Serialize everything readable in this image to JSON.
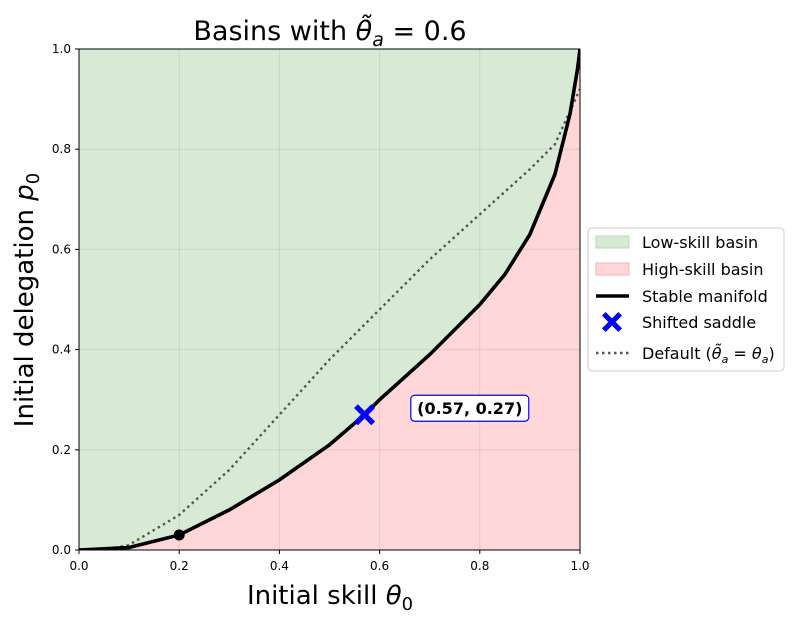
{
  "chart_data": {
    "type": "area",
    "title": "Basins with θ̃a = 0.6",
    "xlabel": "Initial skill θ0",
    "ylabel": "Initial delegation p0",
    "xlim": [
      0,
      1
    ],
    "ylim": [
      0,
      1
    ],
    "x_ticks": [
      "0.0",
      "0.2",
      "0.4",
      "0.6",
      "0.8",
      "1.0"
    ],
    "y_ticks": [
      "0.0",
      "0.2",
      "0.4",
      "0.6",
      "0.8",
      "1.0"
    ],
    "grid": true,
    "legend_position": "right",
    "colors": {
      "low_basin": "#d8ead6",
      "high_basin": "#ffd7d8",
      "manifold": "#000000",
      "saddle": "#0000ff",
      "default": "#555555"
    },
    "series": [
      {
        "name": "Low-skill basin",
        "kind": "fill-above-manifold"
      },
      {
        "name": "High-skill basin",
        "kind": "fill-below-manifold"
      },
      {
        "name": "Stable manifold",
        "x": [
          0,
          0.1,
          0.2,
          0.3,
          0.4,
          0.5,
          0.57,
          0.6,
          0.7,
          0.8,
          0.85,
          0.9,
          0.95,
          0.98,
          0.995,
          1.0
        ],
        "y": [
          0,
          0.005,
          0.03,
          0.08,
          0.14,
          0.21,
          0.27,
          0.3,
          0.39,
          0.49,
          0.55,
          0.63,
          0.75,
          0.87,
          0.96,
          1.0
        ]
      },
      {
        "name": "Shifted saddle",
        "x": [
          0.57
        ],
        "y": [
          0.27
        ]
      },
      {
        "name": "Default (θ̃a = θa)",
        "x": [
          0,
          0.05,
          0.1,
          0.2,
          0.3,
          0.4,
          0.5,
          0.6,
          0.7,
          0.8,
          0.9,
          0.95,
          1.0
        ],
        "y": [
          0,
          0.0,
          0.01,
          0.07,
          0.16,
          0.27,
          0.38,
          0.48,
          0.58,
          0.67,
          0.76,
          0.81,
          0.92
        ]
      }
    ],
    "points": [
      {
        "label": "",
        "x": 0.2,
        "y": 0.03
      }
    ],
    "annotations": [
      {
        "text": "(0.57, 0.27)",
        "x": 0.78,
        "y": 0.285
      }
    ]
  }
}
